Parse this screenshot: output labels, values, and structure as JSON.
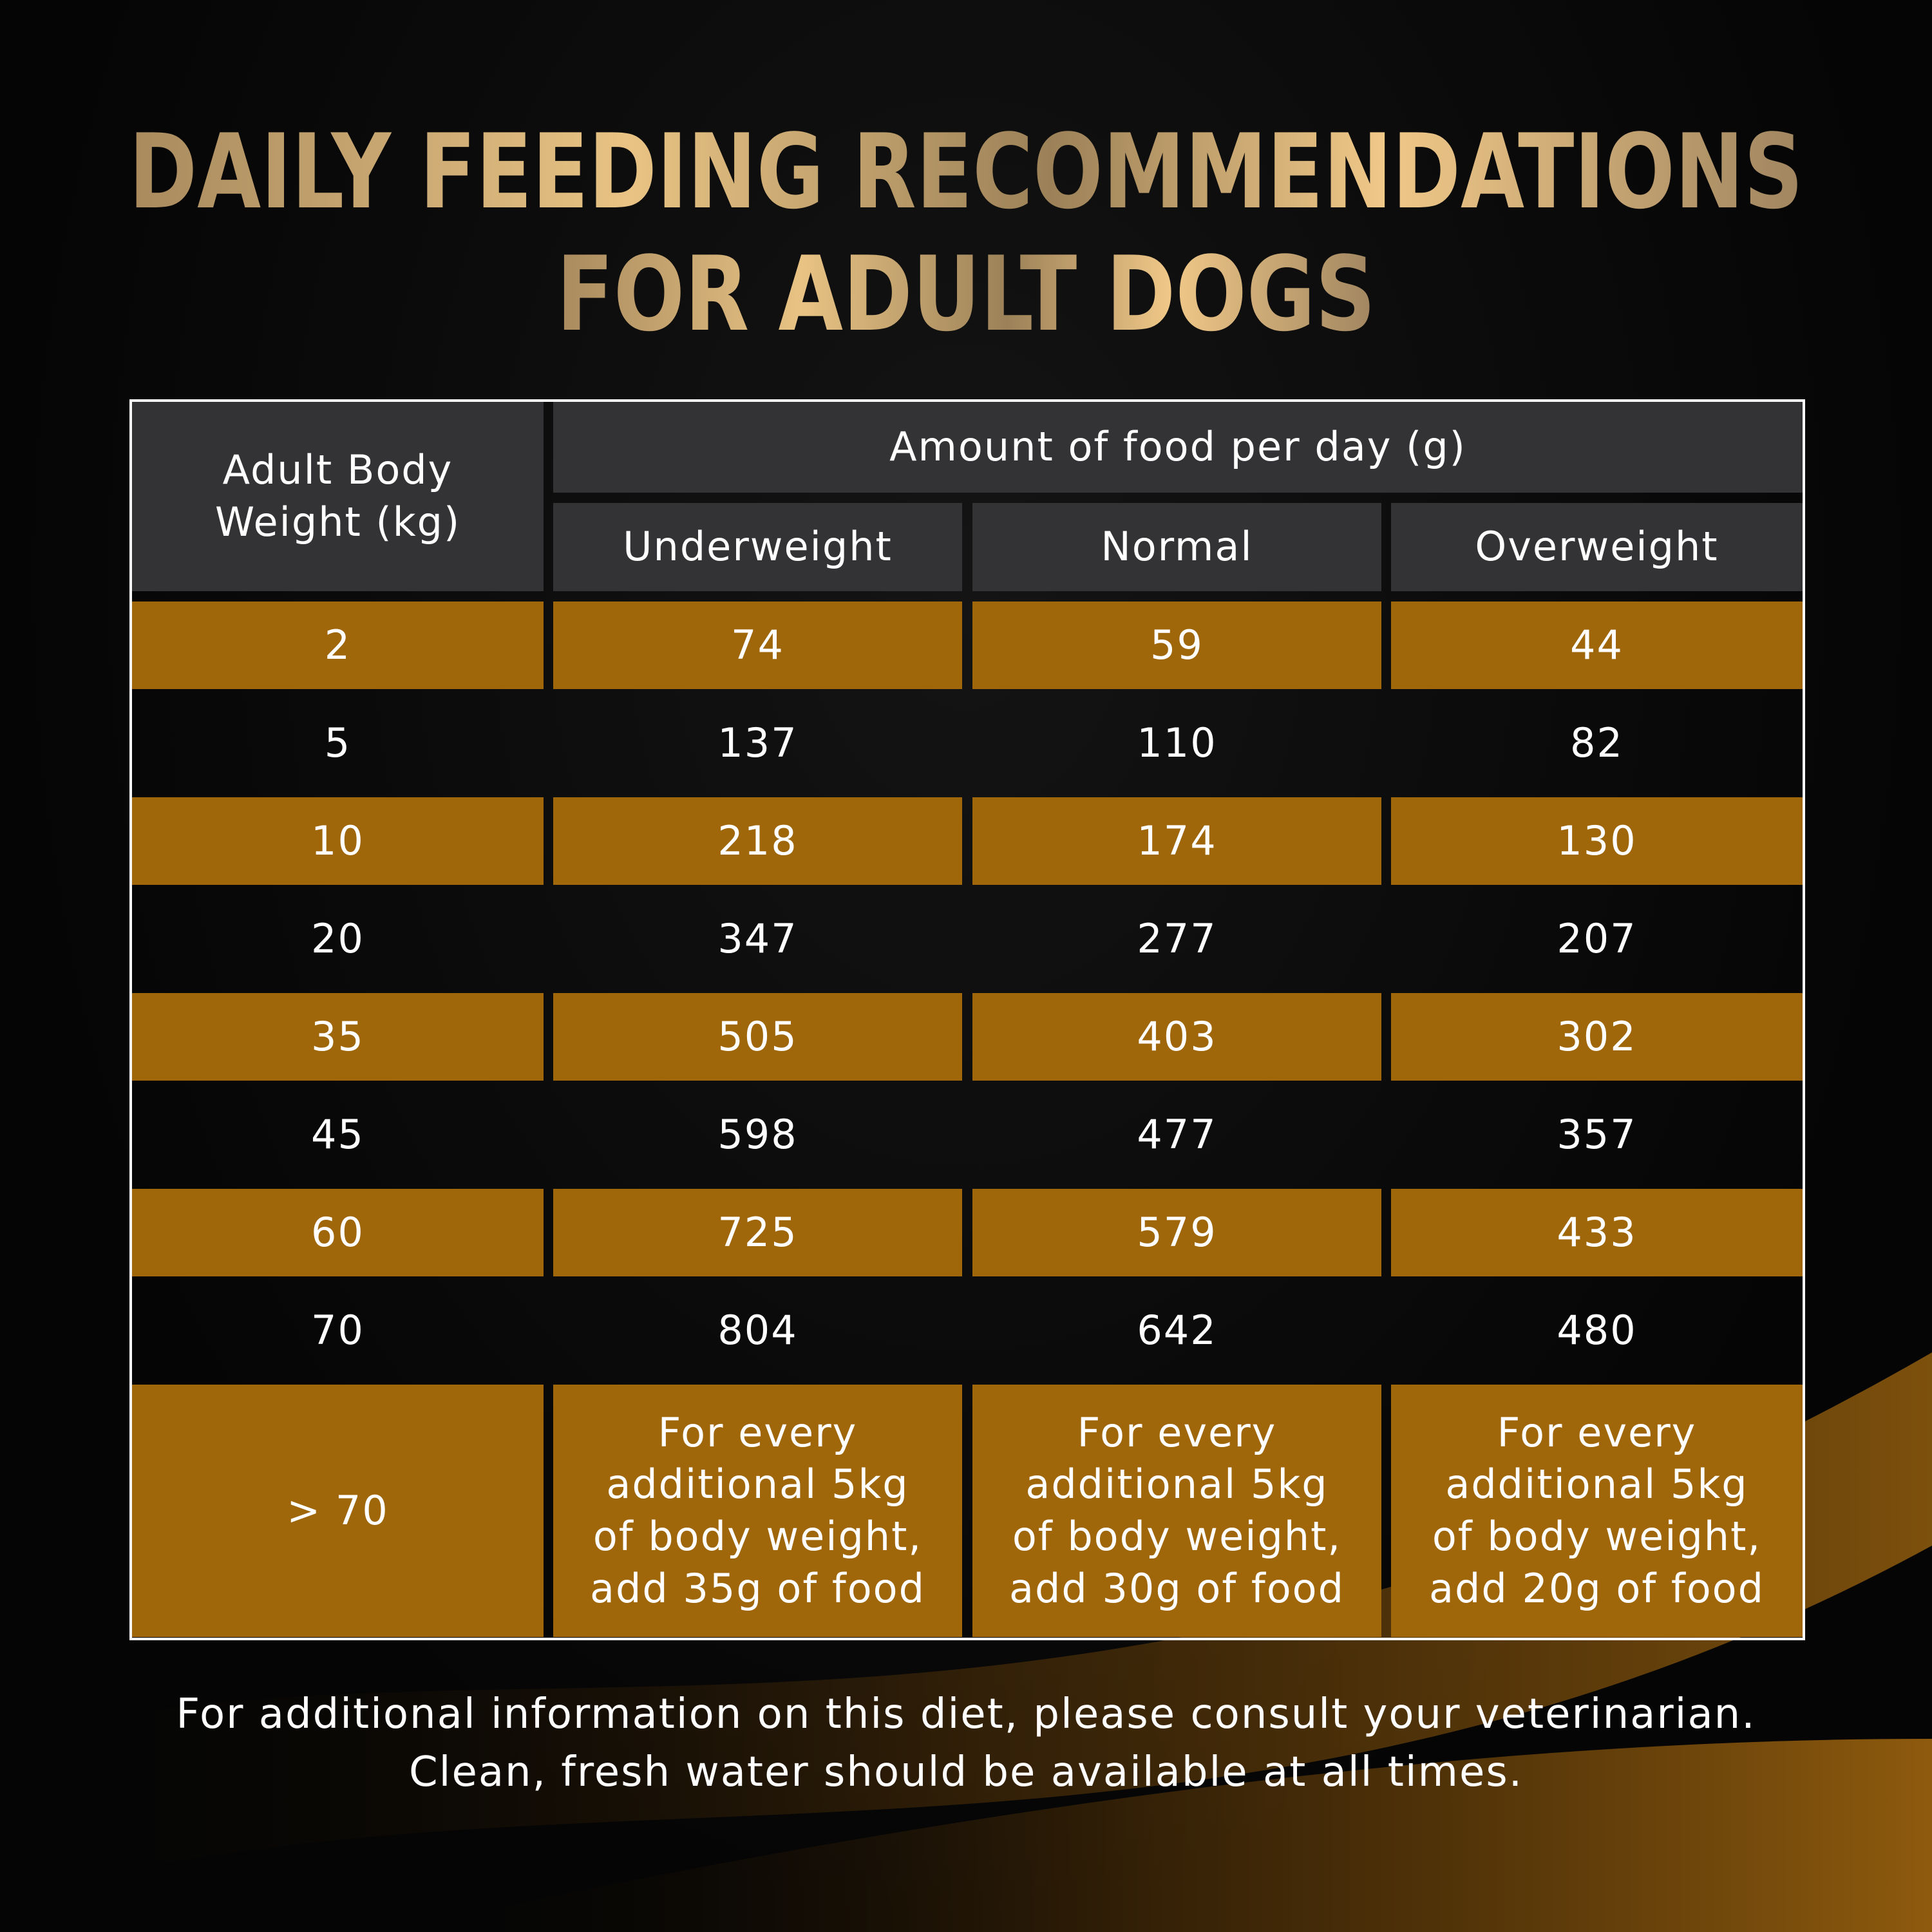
{
  "title": [
    "DAILY FEEDING RECOMMENDATIONS",
    "FOR ADULT DOGS"
  ],
  "table": {
    "header": {
      "weight": "Adult Body Weight (kg)",
      "amount": "Amount of food per day (g)",
      "columns": [
        "Underweight",
        "Normal",
        "Overweight"
      ]
    },
    "rows": [
      [
        2,
        74,
        59,
        44
      ],
      [
        5,
        137,
        110,
        82
      ],
      [
        10,
        218,
        174,
        130
      ],
      [
        20,
        347,
        277,
        207
      ],
      [
        35,
        505,
        403,
        302
      ],
      [
        45,
        598,
        477,
        357
      ],
      [
        60,
        725,
        579,
        433
      ],
      [
        70,
        804,
        642,
        480
      ],
      [
        "> 70",
        "For every additional 5kg of body weight, add 35g of food",
        "For every additional 5kg of body weight, add 30g of food",
        "For every additional 5kg of body weight, add 20g of food"
      ]
    ]
  },
  "footer": [
    "For additional information on this diet, please consult your veterinarian.",
    "Clean, fresh water should be available at all times."
  ]
}
